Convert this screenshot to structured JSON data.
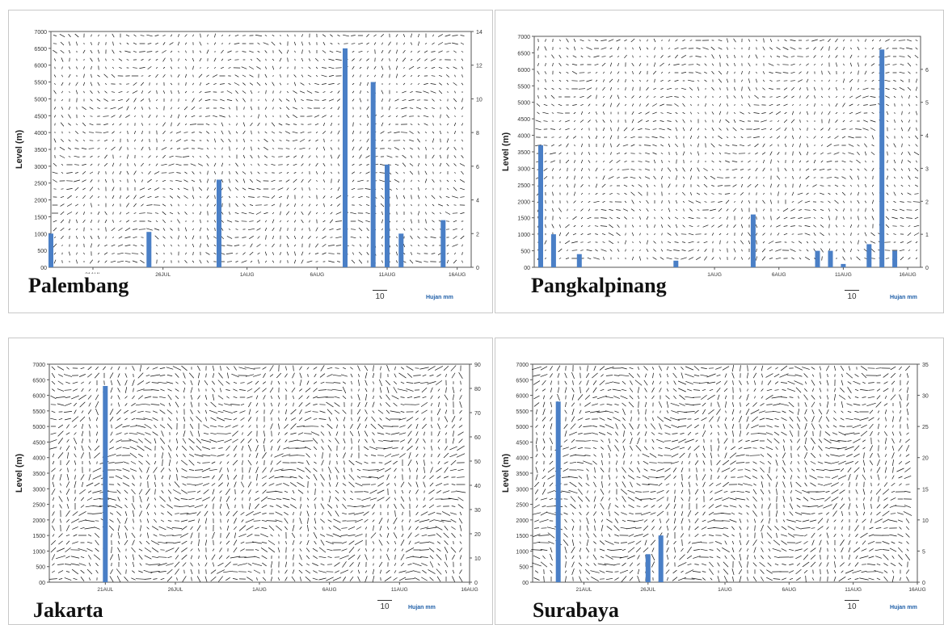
{
  "colors": {
    "rain_bar": "#4a7fc6",
    "vector": "#111111",
    "axis": "#555555"
  },
  "vector_scale_label": "10",
  "rain_legend_label": "Hujan mm",
  "panels": [
    {
      "id": "palembang",
      "station": "Palembang",
      "chart_data": {
        "type": "bar",
        "title": "",
        "ylabel": "Level (m)",
        "ylim": [
          0,
          7000
        ],
        "y_ticks": [
          "00",
          "500",
          "1000",
          "1500",
          "2000",
          "2500",
          "3000",
          "3500",
          "4000",
          "4500",
          "5000",
          "5500",
          "6000",
          "6500",
          "7000"
        ],
        "y2lim": [
          0,
          14
        ],
        "y2_ticks": [
          "0",
          "2",
          "4",
          "6",
          "8",
          "10",
          "12",
          "14"
        ],
        "x_range_days": [
          0,
          30
        ],
        "x_ticks": [
          {
            "day": 3,
            "label": "21AUL"
          },
          {
            "day": 8,
            "label": "26JUL"
          },
          {
            "day": 14,
            "label": "1AUG"
          },
          {
            "day": 19,
            "label": "6AUG"
          },
          {
            "day": 24,
            "label": "11AUG"
          },
          {
            "day": 29,
            "label": "16AUG"
          }
        ],
        "series": [
          {
            "day": [
              0,
              7,
              12,
              21,
              23,
              24,
              25,
              28
            ],
            "values": [
              2,
              2.1,
              5.2,
              13,
              11,
              6.1,
              2,
              2.8
            ]
          }
        ]
      }
    },
    {
      "id": "pangkalpinang",
      "station": "Pangkalpinang",
      "chart_data": {
        "type": "bar",
        "title": "",
        "ylabel": "Level (m)",
        "ylim": [
          0,
          7000
        ],
        "y_ticks": [
          "00",
          "500",
          "1000",
          "1500",
          "2000",
          "2500",
          "3000",
          "3500",
          "4000",
          "4500",
          "5000",
          "5500",
          "6000",
          "6500",
          "7000"
        ],
        "y2lim": [
          0,
          7
        ],
        "y2_ticks": [
          "0",
          "1",
          "2",
          "3",
          "4",
          "5",
          "6"
        ],
        "x_range_days": [
          0,
          30
        ],
        "x_ticks": [
          {
            "day": 14,
            "label": "1AUG"
          },
          {
            "day": 19,
            "label": "6AUG"
          },
          {
            "day": 24,
            "label": "11AUG"
          },
          {
            "day": 29,
            "label": "16AUG"
          }
        ],
        "series": [
          {
            "day": [
              0.5,
              1.5,
              3.5,
              11,
              17,
              22,
              23,
              24,
              26,
              27,
              28
            ],
            "values": [
              3.7,
              1,
              0.4,
              0.2,
              1.6,
              0.5,
              0.5,
              0.1,
              0.7,
              6.6,
              0.5
            ]
          }
        ]
      }
    },
    {
      "id": "jakarta",
      "station": "Jakarta",
      "chart_data": {
        "type": "bar",
        "title": "",
        "ylabel": "Level (m)",
        "ylim": [
          0,
          7000
        ],
        "y_ticks": [
          "00",
          "500",
          "1000",
          "1500",
          "2000",
          "2500",
          "3000",
          "3500",
          "4000",
          "4500",
          "5000",
          "5500",
          "6000",
          "6500",
          "7000"
        ],
        "y2lim": [
          0,
          90
        ],
        "y2_ticks": [
          "0",
          "10",
          "20",
          "30",
          "40",
          "50",
          "60",
          "70",
          "80",
          "90"
        ],
        "x_range_days": [
          0,
          30
        ],
        "x_ticks": [
          {
            "day": 4,
            "label": "21AUL"
          },
          {
            "day": 9,
            "label": "26JUL"
          },
          {
            "day": 15,
            "label": "1AUG"
          },
          {
            "day": 20,
            "label": "6AUG"
          },
          {
            "day": 25,
            "label": "11AUG"
          },
          {
            "day": 30,
            "label": "16AUG"
          }
        ],
        "series": [
          {
            "day": [
              4
            ],
            "values": [
              81
            ]
          }
        ]
      }
    },
    {
      "id": "surabaya",
      "station": "Surabaya",
      "chart_data": {
        "type": "bar",
        "title": "",
        "ylabel": "Level (m)",
        "ylim": [
          0,
          7000
        ],
        "y_ticks": [
          "00",
          "500",
          "1000",
          "1500",
          "2000",
          "2500",
          "3000",
          "3500",
          "4000",
          "4500",
          "5000",
          "5500",
          "6000",
          "6500",
          "7000"
        ],
        "y2lim": [
          0,
          35
        ],
        "y2_ticks": [
          "0",
          "5",
          "10",
          "15",
          "20",
          "25",
          "30",
          "35"
        ],
        "x_range_days": [
          0,
          30
        ],
        "x_ticks": [
          {
            "day": 4,
            "label": "21AUL"
          },
          {
            "day": 9,
            "label": "26JUL"
          },
          {
            "day": 15,
            "label": "1AUG"
          },
          {
            "day": 20,
            "label": "6AUG"
          },
          {
            "day": 25,
            "label": "11AUG"
          },
          {
            "day": 30,
            "label": "16AUG"
          }
        ],
        "series": [
          {
            "day": [
              2,
              9,
              10
            ],
            "values": [
              29,
              4.5,
              7.5
            ]
          }
        ]
      }
    }
  ]
}
